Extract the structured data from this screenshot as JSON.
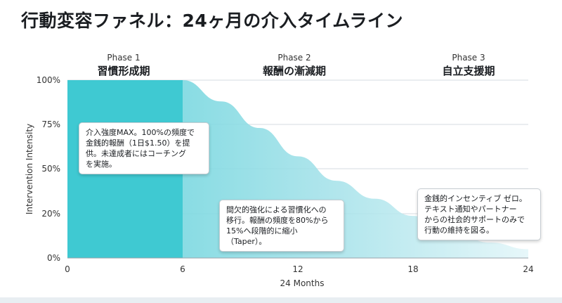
{
  "title": "行動変容ファネル：24ヶ月の介入タイムライン",
  "colors": {
    "phase1_fill": "#3fc9d2",
    "phase_fill_light": "#cdeef3",
    "grid": "#d6dbe0",
    "axis_text": "#333333"
  },
  "chart_data": {
    "type": "area",
    "title": "行動変容ファネル：24ヶ月の介入タイムライン",
    "xlabel": "24 Months",
    "ylabel": "Intervention Intensity",
    "xlim": [
      0,
      24
    ],
    "ylim": [
      0,
      100
    ],
    "x_ticks": [
      0,
      6,
      12,
      18,
      24
    ],
    "y_ticks": [
      {
        "value": 0,
        "label": "0%"
      },
      {
        "value": 20,
        "label": "20%"
      },
      {
        "value": 50,
        "label": "50%"
      },
      {
        "value": 75,
        "label": "75%"
      },
      {
        "value": 100,
        "label": "100%"
      }
    ],
    "grid": true,
    "x": [
      0,
      6,
      8,
      10,
      12,
      14,
      16,
      18,
      20,
      22,
      24
    ],
    "values": [
      100,
      100,
      88,
      73,
      57,
      42,
      30,
      19,
      12,
      7,
      4
    ],
    "phases": [
      {
        "label": "Phase 1",
        "name": "習慣形成期",
        "start": 0,
        "end": 6
      },
      {
        "label": "Phase 2",
        "name": "報酬の漸減期",
        "start": 6,
        "end": 18
      },
      {
        "label": "Phase 3",
        "name": "自立支援期",
        "start": 18,
        "end": 24
      }
    ],
    "annotations": [
      {
        "lines": [
          "介入強度MAX。100%の頻度で",
          "金銭的報酬（1日$1.50）を提",
          "供。未達成者にはコーチング",
          "を実施。"
        ]
      },
      {
        "lines": [
          "間欠的強化による習慣化への",
          "移行。報酬の頻度を80%から",
          "15%へ段階的に縮小（Taper）。"
        ]
      },
      {
        "lines": [
          "金銭的インセンティブ ゼロ。",
          "テキスト通知やパートナー",
          "からの社会的サポートのみで",
          "行動の維持を図る。"
        ]
      }
    ]
  }
}
